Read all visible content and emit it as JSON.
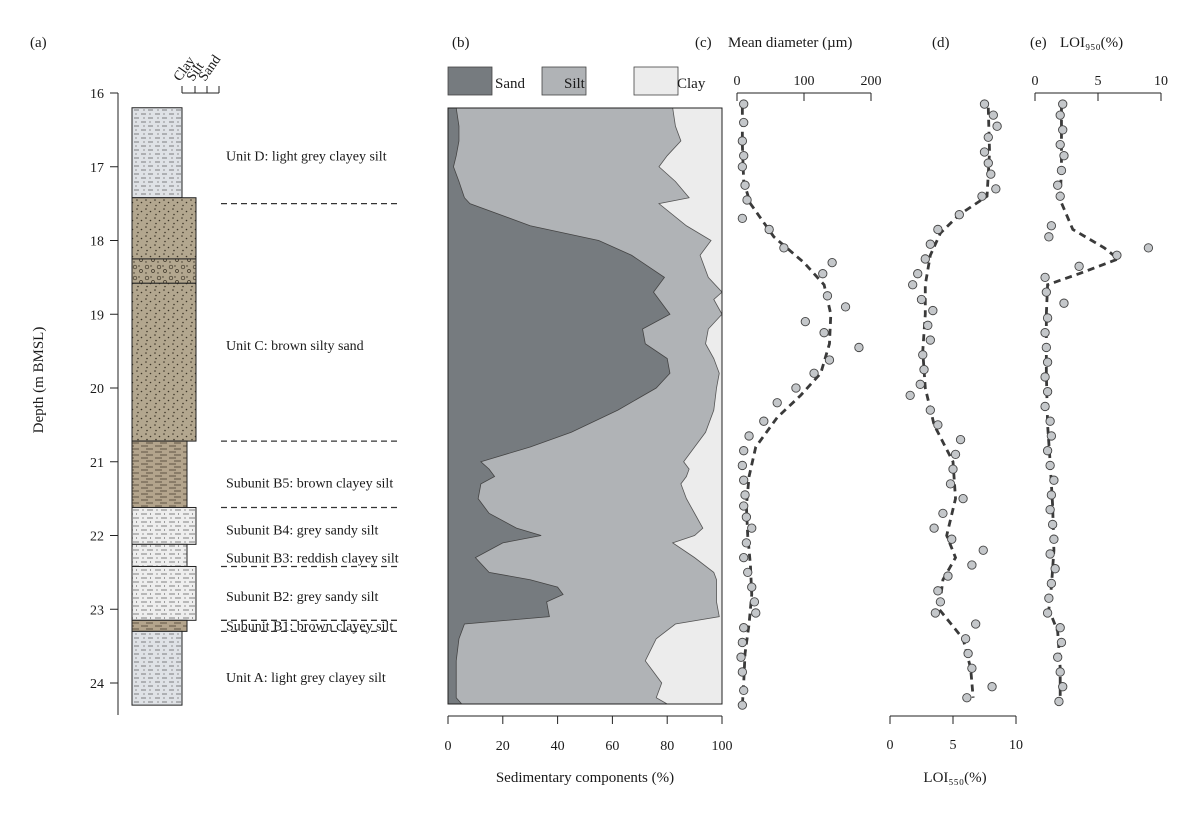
{
  "chart_data": [
    {
      "panel": "(a)",
      "type": "table",
      "ylabel": "Depth (m BMSL)",
      "yticks": [
        16,
        17,
        18,
        19,
        20,
        21,
        22,
        23,
        24
      ],
      "grain_header": [
        "Clay",
        "Silt",
        "Sand"
      ],
      "units": [
        {
          "top": 16.2,
          "bottom": 17.42,
          "width": "clay",
          "pattern": "clayey-silt-light"
        },
        {
          "top": 17.42,
          "bottom": 18.25,
          "width": "sand",
          "pattern": "sand"
        },
        {
          "top": 18.25,
          "bottom": 18.58,
          "width": "sand",
          "pattern": "gravelly-sand"
        },
        {
          "top": 18.58,
          "bottom": 20.72,
          "width": "sand",
          "pattern": "sand"
        },
        {
          "top": 20.72,
          "bottom": 21.62,
          "width": "silt",
          "pattern": "clayey-silt-brown"
        },
        {
          "top": 21.62,
          "bottom": 22.12,
          "width": "silt-sand",
          "pattern": "sandy-silt"
        },
        {
          "top": 22.12,
          "bottom": 22.42,
          "width": "silt",
          "pattern": "sandy-silt"
        },
        {
          "top": 22.42,
          "bottom": 23.15,
          "width": "silt-sand",
          "pattern": "sandy-silt"
        },
        {
          "top": 23.15,
          "bottom": 23.3,
          "width": "silt",
          "pattern": "clayey-silt-brown"
        },
        {
          "top": 23.3,
          "bottom": 24.3,
          "width": "clay",
          "pattern": "clayey-silt-light"
        }
      ],
      "annotations": [
        {
          "text": "Unit D: light grey clayey silt",
          "depth": 16.85
        },
        {
          "text": "Unit C: brown silty sand",
          "depth": 19.42
        },
        {
          "text": "Subunit B5: brown clayey silt",
          "depth": 21.28
        },
        {
          "text": "Subunit B4: grey sandy silt",
          "depth": 21.92
        },
        {
          "text": "Subunit B3: reddish clayey silt",
          "depth": 22.3
        },
        {
          "text": "Subunit B2: grey sandy silt",
          "depth": 22.82
        },
        {
          "text": "Subunit B1: brown clayey silt",
          "depth": 23.22
        },
        {
          "text": "Unit A: light grey clayey silt",
          "depth": 23.92
        }
      ],
      "boundaries": [
        17.5,
        20.72,
        21.62,
        22.42,
        23.15,
        23.3
      ]
    },
    {
      "panel": "(b)",
      "type": "area",
      "xlabel": "Sedimentary components (%)",
      "xticks": [
        0,
        20,
        40,
        60,
        80,
        100
      ],
      "xlim": [
        0,
        100
      ],
      "ylim": [
        16,
        24.6
      ],
      "legend": [
        "Sand",
        "Silt",
        "Clay"
      ],
      "colors": {
        "Sand": "#767b7f",
        "Silt": "#b0b3b6",
        "Clay": "#ececec"
      },
      "depth": [
        16.2,
        16.45,
        16.65,
        16.85,
        17.0,
        17.2,
        17.42,
        17.5,
        17.8,
        18.0,
        18.2,
        18.5,
        18.7,
        18.8,
        19.0,
        19.2,
        19.4,
        19.6,
        19.8,
        20.0,
        20.3,
        20.6,
        20.8,
        21.0,
        21.1,
        21.2,
        21.3,
        21.5,
        21.7,
        21.9,
        22.0,
        22.1,
        22.3,
        22.5,
        22.6,
        22.7,
        22.8,
        22.9,
        23.1,
        23.2,
        23.4,
        23.7,
        24.0,
        24.2,
        24.35
      ],
      "sand_cum": [
        3,
        4,
        4,
        3,
        2,
        4,
        6,
        8,
        30,
        55,
        67,
        79,
        75,
        77,
        81,
        71,
        72,
        80,
        81,
        76,
        62,
        45,
        30,
        12,
        15,
        17,
        12,
        11,
        15,
        25,
        34,
        20,
        10,
        15,
        30,
        40,
        42,
        36,
        37,
        6,
        4,
        3,
        3,
        3,
        5
      ],
      "silt_cum": [
        82,
        83,
        85,
        80,
        77,
        83,
        88,
        77,
        87,
        96,
        92,
        95,
        100,
        97,
        100,
        95,
        94,
        97,
        99,
        98,
        97,
        94,
        90,
        86,
        88,
        87,
        85,
        87,
        90,
        93,
        90,
        82,
        90,
        97,
        98,
        98,
        98,
        98,
        99,
        83,
        76,
        72,
        78,
        76,
        80
      ]
    },
    {
      "panel": "(c)",
      "type": "scatter",
      "title": "Mean diameter (µm)",
      "xticks": [
        0,
        100,
        200
      ],
      "xlim": [
        0,
        200
      ],
      "ylim": [
        16,
        24.6
      ],
      "points": [
        [
          10,
          16.15
        ],
        [
          10,
          16.4
        ],
        [
          8,
          16.65
        ],
        [
          10,
          16.85
        ],
        [
          8,
          17.0
        ],
        [
          12,
          17.25
        ],
        [
          15,
          17.45
        ],
        [
          8,
          17.7
        ],
        [
          48,
          17.85
        ],
        [
          70,
          18.1
        ],
        [
          142,
          18.3
        ],
        [
          128,
          18.45
        ],
        [
          135,
          18.75
        ],
        [
          162,
          18.9
        ],
        [
          102,
          19.1
        ],
        [
          130,
          19.25
        ],
        [
          182,
          19.45
        ],
        [
          138,
          19.62
        ],
        [
          115,
          19.8
        ],
        [
          88,
          20.0
        ],
        [
          60,
          20.2
        ],
        [
          40,
          20.45
        ],
        [
          18,
          20.65
        ],
        [
          10,
          20.85
        ],
        [
          8,
          21.05
        ],
        [
          10,
          21.25
        ],
        [
          12,
          21.45
        ],
        [
          10,
          21.6
        ],
        [
          14,
          21.75
        ],
        [
          22,
          21.9
        ],
        [
          14,
          22.1
        ],
        [
          10,
          22.3
        ],
        [
          16,
          22.5
        ],
        [
          22,
          22.7
        ],
        [
          26,
          22.9
        ],
        [
          28,
          23.05
        ],
        [
          10,
          23.25
        ],
        [
          8,
          23.45
        ],
        [
          6,
          23.65
        ],
        [
          8,
          23.85
        ],
        [
          10,
          24.1
        ],
        [
          8,
          24.3
        ]
      ],
      "trend": [
        [
          8,
          16.2
        ],
        [
          8,
          16.7
        ],
        [
          10,
          17.2
        ],
        [
          20,
          17.5
        ],
        [
          55,
          17.95
        ],
        [
          100,
          18.3
        ],
        [
          130,
          18.6
        ],
        [
          140,
          19.0
        ],
        [
          138,
          19.4
        ],
        [
          125,
          19.8
        ],
        [
          95,
          20.1
        ],
        [
          60,
          20.4
        ],
        [
          28,
          20.8
        ],
        [
          18,
          21.2
        ],
        [
          14,
          21.6
        ],
        [
          16,
          22.0
        ],
        [
          20,
          22.4
        ],
        [
          22,
          22.8
        ],
        [
          18,
          23.2
        ],
        [
          12,
          23.6
        ],
        [
          10,
          24.0
        ],
        [
          8,
          24.3
        ]
      ]
    },
    {
      "panel": "(d)",
      "type": "scatter",
      "xlabel": "LOI₅₅₀(%)",
      "xticks": [
        0,
        5,
        10
      ],
      "xlim": [
        0,
        10
      ],
      "ylim": [
        16,
        24.6
      ],
      "points": [
        [
          7.5,
          16.15
        ],
        [
          8.2,
          16.3
        ],
        [
          8.5,
          16.45
        ],
        [
          7.8,
          16.6
        ],
        [
          7.5,
          16.8
        ],
        [
          7.8,
          16.95
        ],
        [
          8.0,
          17.1
        ],
        [
          8.4,
          17.3
        ],
        [
          7.3,
          17.4
        ],
        [
          5.5,
          17.65
        ],
        [
          3.8,
          17.85
        ],
        [
          3.2,
          18.05
        ],
        [
          2.8,
          18.25
        ],
        [
          2.2,
          18.45
        ],
        [
          1.8,
          18.6
        ],
        [
          2.5,
          18.8
        ],
        [
          3.4,
          18.95
        ],
        [
          3.0,
          19.15
        ],
        [
          3.2,
          19.35
        ],
        [
          2.6,
          19.55
        ],
        [
          2.7,
          19.75
        ],
        [
          2.4,
          19.95
        ],
        [
          1.6,
          20.1
        ],
        [
          3.2,
          20.3
        ],
        [
          3.8,
          20.5
        ],
        [
          5.6,
          20.7
        ],
        [
          5.2,
          20.9
        ],
        [
          5.0,
          21.1
        ],
        [
          4.8,
          21.3
        ],
        [
          5.8,
          21.5
        ],
        [
          4.2,
          21.7
        ],
        [
          3.5,
          21.9
        ],
        [
          4.9,
          22.05
        ],
        [
          7.4,
          22.2
        ],
        [
          6.5,
          22.4
        ],
        [
          4.6,
          22.55
        ],
        [
          3.8,
          22.75
        ],
        [
          4.0,
          22.9
        ],
        [
          3.6,
          23.05
        ],
        [
          6.8,
          23.2
        ],
        [
          6.0,
          23.4
        ],
        [
          6.2,
          23.6
        ],
        [
          6.5,
          23.8
        ],
        [
          8.1,
          24.05
        ],
        [
          6.1,
          24.2
        ]
      ],
      "trend": [
        [
          7.8,
          16.2
        ],
        [
          7.9,
          16.8
        ],
        [
          7.7,
          17.4
        ],
        [
          5.5,
          17.65
        ],
        [
          4.0,
          17.9
        ],
        [
          3.2,
          18.2
        ],
        [
          2.8,
          18.6
        ],
        [
          2.8,
          19.0
        ],
        [
          2.6,
          19.5
        ],
        [
          2.8,
          20.0
        ],
        [
          3.5,
          20.5
        ],
        [
          5.0,
          21.0
        ],
        [
          5.2,
          21.5
        ],
        [
          4.5,
          22.0
        ],
        [
          5.2,
          22.3
        ],
        [
          4.2,
          22.6
        ],
        [
          3.9,
          23.0
        ],
        [
          5.8,
          23.4
        ],
        [
          6.4,
          23.8
        ],
        [
          6.6,
          24.2
        ]
      ]
    },
    {
      "panel": "(e)",
      "type": "scatter",
      "title": "LOI₉₅₀(%)",
      "xticks": [
        0,
        5,
        10
      ],
      "xlim": [
        0,
        10
      ],
      "ylim": [
        16,
        24.6
      ],
      "points": [
        [
          2.2,
          16.15
        ],
        [
          2.0,
          16.3
        ],
        [
          2.2,
          16.5
        ],
        [
          2.0,
          16.7
        ],
        [
          2.3,
          16.85
        ],
        [
          2.1,
          17.05
        ],
        [
          1.8,
          17.25
        ],
        [
          2.0,
          17.4
        ],
        [
          1.3,
          17.8
        ],
        [
          1.1,
          17.95
        ],
        [
          9.0,
          18.1
        ],
        [
          6.5,
          18.2
        ],
        [
          3.5,
          18.35
        ],
        [
          0.8,
          18.5
        ],
        [
          0.9,
          18.7
        ],
        [
          2.3,
          18.85
        ],
        [
          1.0,
          19.05
        ],
        [
          0.8,
          19.25
        ],
        [
          0.9,
          19.45
        ],
        [
          1.0,
          19.65
        ],
        [
          0.8,
          19.85
        ],
        [
          1.0,
          20.05
        ],
        [
          0.8,
          20.25
        ],
        [
          1.2,
          20.45
        ],
        [
          1.3,
          20.65
        ],
        [
          1.0,
          20.85
        ],
        [
          1.2,
          21.05
        ],
        [
          1.5,
          21.25
        ],
        [
          1.3,
          21.45
        ],
        [
          1.2,
          21.65
        ],
        [
          1.4,
          21.85
        ],
        [
          1.5,
          22.05
        ],
        [
          1.2,
          22.25
        ],
        [
          1.6,
          22.45
        ],
        [
          1.3,
          22.65
        ],
        [
          1.1,
          22.85
        ],
        [
          1.0,
          23.05
        ],
        [
          2.0,
          23.25
        ],
        [
          2.1,
          23.45
        ],
        [
          1.8,
          23.65
        ],
        [
          2.0,
          23.85
        ],
        [
          2.2,
          24.05
        ],
        [
          1.9,
          24.25
        ]
      ],
      "trend": [
        [
          2.1,
          16.2
        ],
        [
          2.1,
          17.0
        ],
        [
          2.0,
          17.45
        ],
        [
          3.0,
          17.85
        ],
        [
          5.5,
          18.1
        ],
        [
          6.6,
          18.25
        ],
        [
          3.5,
          18.45
        ],
        [
          1.0,
          18.6
        ],
        [
          0.9,
          19.0
        ],
        [
          0.9,
          19.8
        ],
        [
          1.0,
          20.5
        ],
        [
          1.2,
          21.0
        ],
        [
          1.4,
          21.6
        ],
        [
          1.5,
          22.2
        ],
        [
          1.3,
          22.7
        ],
        [
          1.1,
          23.0
        ],
        [
          1.8,
          23.3
        ],
        [
          2.0,
          23.8
        ],
        [
          2.0,
          24.25
        ]
      ]
    }
  ]
}
